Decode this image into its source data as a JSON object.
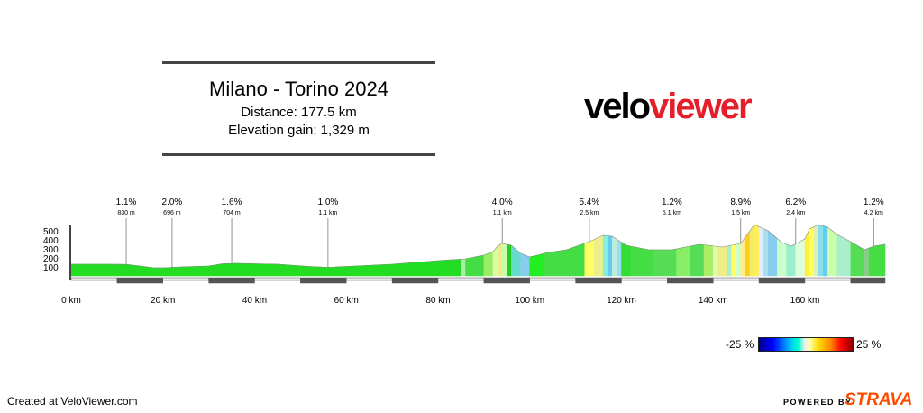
{
  "header": {
    "title": "Milano - Torino 2024",
    "distance_line": "Distance: 177.5 km",
    "elevation_line": "Elevation gain: 1,329 m"
  },
  "logo": {
    "part1": "velo",
    "part2": "viewer",
    "color_primary": "#000000",
    "color_accent": "#e41e2b"
  },
  "footer": {
    "credit": "Created at VeloViewer.com",
    "powered_by": "POWERED BY",
    "strava": "STRAVA",
    "strava_color": "#fc4c02"
  },
  "gradient_scale": {
    "min_label": "-25 %",
    "max_label": "25 %"
  },
  "chart_data": {
    "type": "area",
    "title": "Milano - Torino 2024",
    "xlabel": "",
    "ylabel": "",
    "x_unit": "km",
    "xlim": [
      0,
      177.5
    ],
    "ylim": [
      0,
      600
    ],
    "x_ticks": [
      0,
      20,
      40,
      60,
      80,
      100,
      120,
      140,
      160
    ],
    "x_tick_labels": [
      "0 km",
      "20 km",
      "40 km",
      "60 km",
      "80 km",
      "100 km",
      "120 km",
      "140 km",
      "160 km"
    ],
    "y_ticks": [
      100,
      200,
      300,
      400,
      500
    ],
    "y_tick_labels": [
      "100",
      "200",
      "300",
      "400",
      "500"
    ],
    "profile": [
      [
        0,
        130
      ],
      [
        8,
        130
      ],
      [
        12,
        128
      ],
      [
        15,
        110
      ],
      [
        18,
        90
      ],
      [
        20,
        90
      ],
      [
        24,
        100
      ],
      [
        30,
        110
      ],
      [
        33,
        135
      ],
      [
        36,
        140
      ],
      [
        40,
        135
      ],
      [
        45,
        130
      ],
      [
        52,
        105
      ],
      [
        56,
        95
      ],
      [
        60,
        105
      ],
      [
        70,
        130
      ],
      [
        80,
        170
      ],
      [
        86,
        190
      ],
      [
        90,
        230
      ],
      [
        92,
        270
      ],
      [
        93,
        330
      ],
      [
        94,
        360
      ],
      [
        96,
        340
      ],
      [
        98,
        250
      ],
      [
        100,
        210
      ],
      [
        104,
        260
      ],
      [
        108,
        290
      ],
      [
        113,
        380
      ],
      [
        116,
        450
      ],
      [
        118,
        440
      ],
      [
        121,
        340
      ],
      [
        126,
        290
      ],
      [
        131,
        290
      ],
      [
        135,
        330
      ],
      [
        137,
        350
      ],
      [
        142,
        320
      ],
      [
        146,
        360
      ],
      [
        149,
        570
      ],
      [
        152,
        500
      ],
      [
        155,
        370
      ],
      [
        157,
        330
      ],
      [
        160,
        410
      ],
      [
        161,
        520
      ],
      [
        163,
        570
      ],
      [
        165,
        540
      ],
      [
        167,
        460
      ],
      [
        170,
        380
      ],
      [
        173,
        290
      ],
      [
        175,
        330
      ],
      [
        177.5,
        350
      ]
    ],
    "segment_colors": [
      [
        0,
        85,
        "#22dd22"
      ],
      [
        85,
        86,
        "#aaeeaa"
      ],
      [
        86,
        90,
        "#44dd44"
      ],
      [
        90,
        92,
        "#99ee66"
      ],
      [
        92,
        93,
        "#ddffaa"
      ],
      [
        93,
        94,
        "#eeee88"
      ],
      [
        94,
        95,
        "#ccffaa"
      ],
      [
        95,
        96,
        "#22cc22"
      ],
      [
        96,
        98,
        "#66ddcc"
      ],
      [
        98,
        100,
        "#88ccee"
      ],
      [
        100,
        103,
        "#22ee22"
      ],
      [
        103,
        112,
        "#44dd44"
      ],
      [
        112,
        114,
        "#ffff66"
      ],
      [
        114,
        116,
        "#eeee88"
      ],
      [
        116,
        117,
        "#88eedd"
      ],
      [
        117,
        118,
        "#66ccee"
      ],
      [
        118,
        119,
        "#bbeedd"
      ],
      [
        119,
        120,
        "#99ddee"
      ],
      [
        120,
        122,
        "#33dd33"
      ],
      [
        122,
        127,
        "#44dd44"
      ],
      [
        127,
        132,
        "#55dd55"
      ],
      [
        132,
        135,
        "#88ee66"
      ],
      [
        135,
        138,
        "#55dd55"
      ],
      [
        138,
        140,
        "#aaee66"
      ],
      [
        140,
        141,
        "#ddffaa"
      ],
      [
        141,
        143,
        "#eeee88"
      ],
      [
        143,
        144,
        "#aaeecc"
      ],
      [
        144,
        145,
        "#ffff66"
      ],
      [
        145,
        146,
        "#ccffcc"
      ],
      [
        146,
        147,
        "#ffee88"
      ],
      [
        147,
        148,
        "#ffcc22"
      ],
      [
        148,
        149,
        "#eeee66"
      ],
      [
        149,
        150,
        "#ffee55"
      ],
      [
        150,
        151,
        "#ddeeff"
      ],
      [
        151,
        152,
        "#aaddee"
      ],
      [
        152,
        154,
        "#88ccee"
      ],
      [
        154,
        156,
        "#ccffcc"
      ],
      [
        156,
        158,
        "#99eecc"
      ],
      [
        158,
        160,
        "#ddffdd"
      ],
      [
        160,
        161,
        "#ffee44"
      ],
      [
        161,
        162,
        "#ffff55"
      ],
      [
        162,
        163,
        "#ddeebb"
      ],
      [
        163,
        164,
        "#88ddee"
      ],
      [
        164,
        165,
        "#66ccee"
      ],
      [
        165,
        167,
        "#ccffaa"
      ],
      [
        167,
        170,
        "#aaeecc"
      ],
      [
        170,
        173,
        "#55dd55"
      ],
      [
        173,
        174,
        "#88cc88"
      ],
      [
        174,
        177.5,
        "#44dd44"
      ]
    ],
    "climbs": [
      {
        "x": 12,
        "gradient": "1.1%",
        "length": "830 m"
      },
      {
        "x": 22,
        "gradient": "2.0%",
        "length": "696 m"
      },
      {
        "x": 35,
        "gradient": "1.6%",
        "length": "704 m"
      },
      {
        "x": 56,
        "gradient": "1.0%",
        "length": "1.1 km"
      },
      {
        "x": 94,
        "gradient": "4.0%",
        "length": "1.1 km"
      },
      {
        "x": 113,
        "gradient": "5.4%",
        "length": "2.5 km"
      },
      {
        "x": 131,
        "gradient": "1.2%",
        "length": "5.1 km"
      },
      {
        "x": 146,
        "gradient": "8.9%",
        "length": "1.5 km"
      },
      {
        "x": 158,
        "gradient": "6.2%",
        "length": "2.4 km"
      },
      {
        "x": 175,
        "gradient": "1.2%",
        "length": "4.2 km"
      }
    ]
  }
}
